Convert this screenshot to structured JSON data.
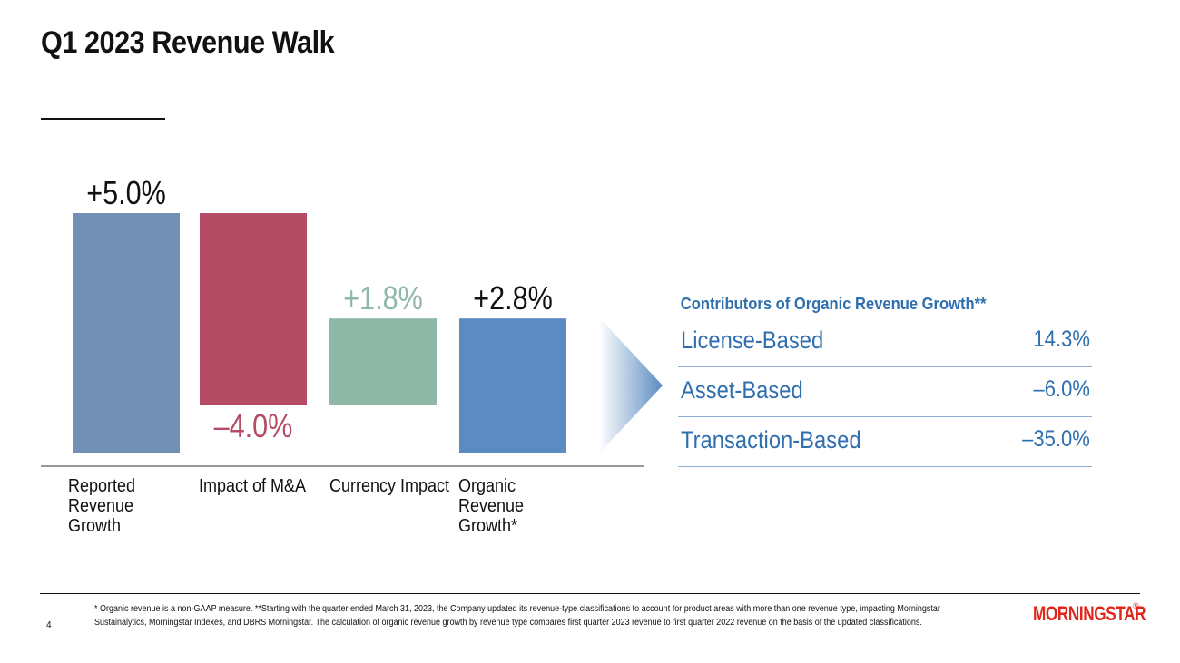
{
  "title": "Q1 2023 Revenue Walk",
  "colors": {
    "reported": "#7290b4",
    "mna": "#b34c64",
    "currency": "#8fb8a6",
    "organic": "#5b8bc1",
    "accent_blue": "#2f6fb0",
    "logo_red": "#e0251b"
  },
  "chart_data": {
    "type": "bar",
    "subtype": "waterfall",
    "categories": [
      "Reported Revenue Growth",
      "Impact of M&A",
      "Currency Impact",
      "Organic Revenue Growth*"
    ],
    "values": [
      5.0,
      -4.0,
      1.8,
      2.8
    ],
    "value_labels": [
      "+5.0%",
      "–4.0%",
      "+1.8%",
      "+2.8%"
    ],
    "ylabel": "",
    "xlabel": "",
    "grid": false
  },
  "panel": {
    "title": "Contributors of Organic Revenue Growth**",
    "rows": [
      {
        "label": "License-Based",
        "value": "14.3%"
      },
      {
        "label": "Asset-Based",
        "value": "–6.0%"
      },
      {
        "label": "Transaction-Based",
        "value": "–35.0%"
      }
    ]
  },
  "footer": {
    "page_number": "4",
    "footnote": "* Organic revenue is a non-GAAP measure. **Starting with the quarter ended March 31, 2023, the Company updated its revenue-type classifications to account for product areas with more than one revenue type, impacting Morningstar Sustainalytics, Morningstar Indexes, and DBRS Morningstar. The calculation of organic revenue growth by revenue type compares first quarter 2023 revenue to first quarter 2022 revenue on the basis of the updated classifications.",
    "logo_text": "MORNINGSTAR",
    "logo_mark": "®"
  }
}
